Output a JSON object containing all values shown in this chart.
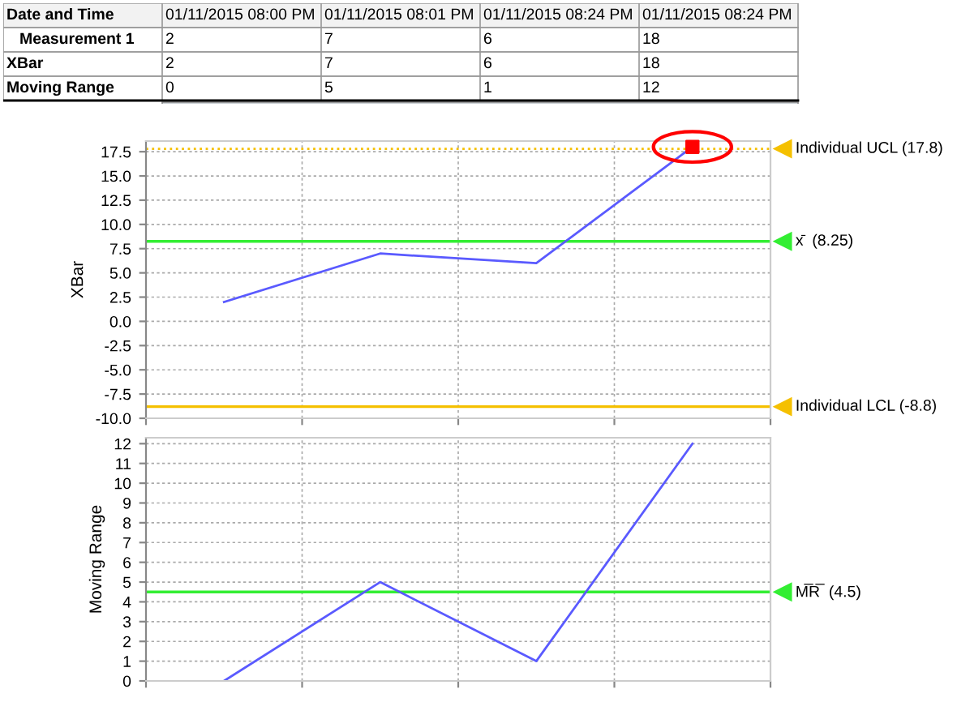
{
  "chart_data": [
    {
      "type": "other",
      "xlabel": "Date and Time",
      "categories": [
        "01/11/2015 08:00 PM",
        "01/11/2015 08:01 PM",
        "01/11/2015 08:24 PM",
        "01/11/2015 08:24 PM"
      ],
      "data_labels": true,
      "series": [
        {
          "name": "Measurement 1",
          "values": [
            2,
            7,
            6,
            18
          ]
        },
        {
          "name": "XBar",
          "values": [
            2,
            7,
            6,
            18
          ]
        },
        {
          "name": "Moving Range",
          "values": [
            0,
            5,
            1,
            12
          ]
        }
      ]
    },
    {
      "type": "line",
      "ylabel": "XBar",
      "categories": [
        null,
        null,
        null,
        null
      ],
      "tick_labels": "y",
      "grid": true,
      "ylim": [
        -10,
        18.6
      ],
      "yticks": [
        {
          "value": -10,
          "label": "-10.0"
        },
        {
          "value": -7.5,
          "label": "-7.5"
        },
        {
          "value": -5,
          "label": "-5.0"
        },
        {
          "value": -2.5,
          "label": "-2.5"
        },
        {
          "value": 0,
          "label": "0.0"
        },
        {
          "value": 2.5,
          "label": "2.5"
        },
        {
          "value": 5,
          "label": "5.0"
        },
        {
          "value": 7.5,
          "label": "7.5"
        },
        {
          "value": 10,
          "label": "10.0"
        },
        {
          "value": 12.5,
          "label": "12.5"
        },
        {
          "value": 15,
          "label": "15.0"
        },
        {
          "value": 17.5,
          "label": "17.5"
        }
      ],
      "series": [
        {
          "color": "#5a5aff",
          "values": [
            2,
            7,
            6,
            18
          ],
          "marker": "none"
        },
        {
          "type": "scatter",
          "color": "#ff0000",
          "values": [
            null,
            null,
            null,
            18
          ],
          "marker": "square"
        }
      ],
      "ref_lines": [
        {
          "axis": "y",
          "value": 17.8,
          "label": "Individual UCL (17.8)",
          "color": "#f5c000",
          "line_style": "dotted"
        },
        {
          "axis": "y",
          "value": 8.25,
          "label": "x̄  (8.25)",
          "color": "#33ee33",
          "line_style": "solid"
        },
        {
          "axis": "y",
          "value": -8.8,
          "label": "Individual LCL (-8.8)",
          "color": "#f5c000",
          "line_style": "solid"
        }
      ]
    },
    {
      "type": "line",
      "ylabel": "Moving Range",
      "categories": [
        null,
        null,
        null,
        null
      ],
      "tick_labels": "y",
      "grid": true,
      "ylim": [
        0,
        12.3
      ],
      "yticks": [
        0,
        1,
        2,
        3,
        4,
        5,
        6,
        7,
        8,
        9,
        10,
        11,
        12
      ],
      "series": [
        {
          "color": "#5a5aff",
          "values": [
            0,
            5,
            1,
            12
          ],
          "marker": "none"
        }
      ],
      "ref_lines": [
        {
          "axis": "y",
          "value": 4.5,
          "label": "M̅R̅  (4.5)",
          "color": "#33ee33",
          "line_style": "solid"
        }
      ]
    }
  ]
}
